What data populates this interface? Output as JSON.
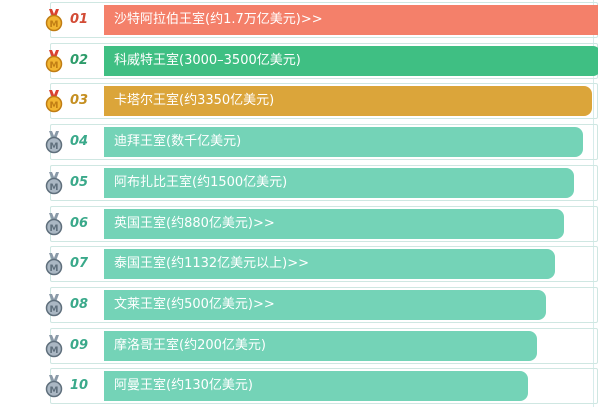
{
  "colors": {
    "gold_bar": "#f4806a",
    "silver_bar": "#3fbf83",
    "bronze_bar": "#dba53a",
    "default_bar": "#74d3b7",
    "rank_red": "#d24b35",
    "rank_green": "#2d9c6a",
    "rank_orange": "#c58f21",
    "rank_teal": "#3aa98a"
  },
  "rows": [
    {
      "rank": "01",
      "label": "沙特阿拉伯王室(约1.7万亿美元)>>",
      "fill": 1.0,
      "medal": "gold-medal-icon"
    },
    {
      "rank": "02",
      "label": "科威特王室(3000–3500亿美元)",
      "fill": 0.982,
      "medal": "gold-medal-icon"
    },
    {
      "rank": "03",
      "label": "卡塔尔王室(约3350亿美元)",
      "fill": 0.964,
      "medal": "gold-medal-icon"
    },
    {
      "rank": "04",
      "label": "迪拜王室(数千亿美元)",
      "fill": 0.946,
      "medal": "silver-medal-icon"
    },
    {
      "rank": "05",
      "label": "阿布扎比王室(约1500亿美元)",
      "fill": 0.928,
      "medal": "silver-medal-icon"
    },
    {
      "rank": "06",
      "label": "英国王室(约880亿美元)>>",
      "fill": 0.91,
      "medal": "silver-medal-icon"
    },
    {
      "rank": "07",
      "label": "泰国王室(约1132亿美元以上)>>",
      "fill": 0.892,
      "medal": "silver-medal-icon"
    },
    {
      "rank": "08",
      "label": "文莱王室(约500亿美元)>>",
      "fill": 0.874,
      "medal": "silver-medal-icon"
    },
    {
      "rank": "09",
      "label": "摩洛哥王室(约200亿美元)",
      "fill": 0.856,
      "medal": "silver-medal-icon"
    },
    {
      "rank": "10",
      "label": "阿曼王室(约130亿美元)",
      "fill": 0.838,
      "medal": "silver-medal-icon"
    }
  ]
}
